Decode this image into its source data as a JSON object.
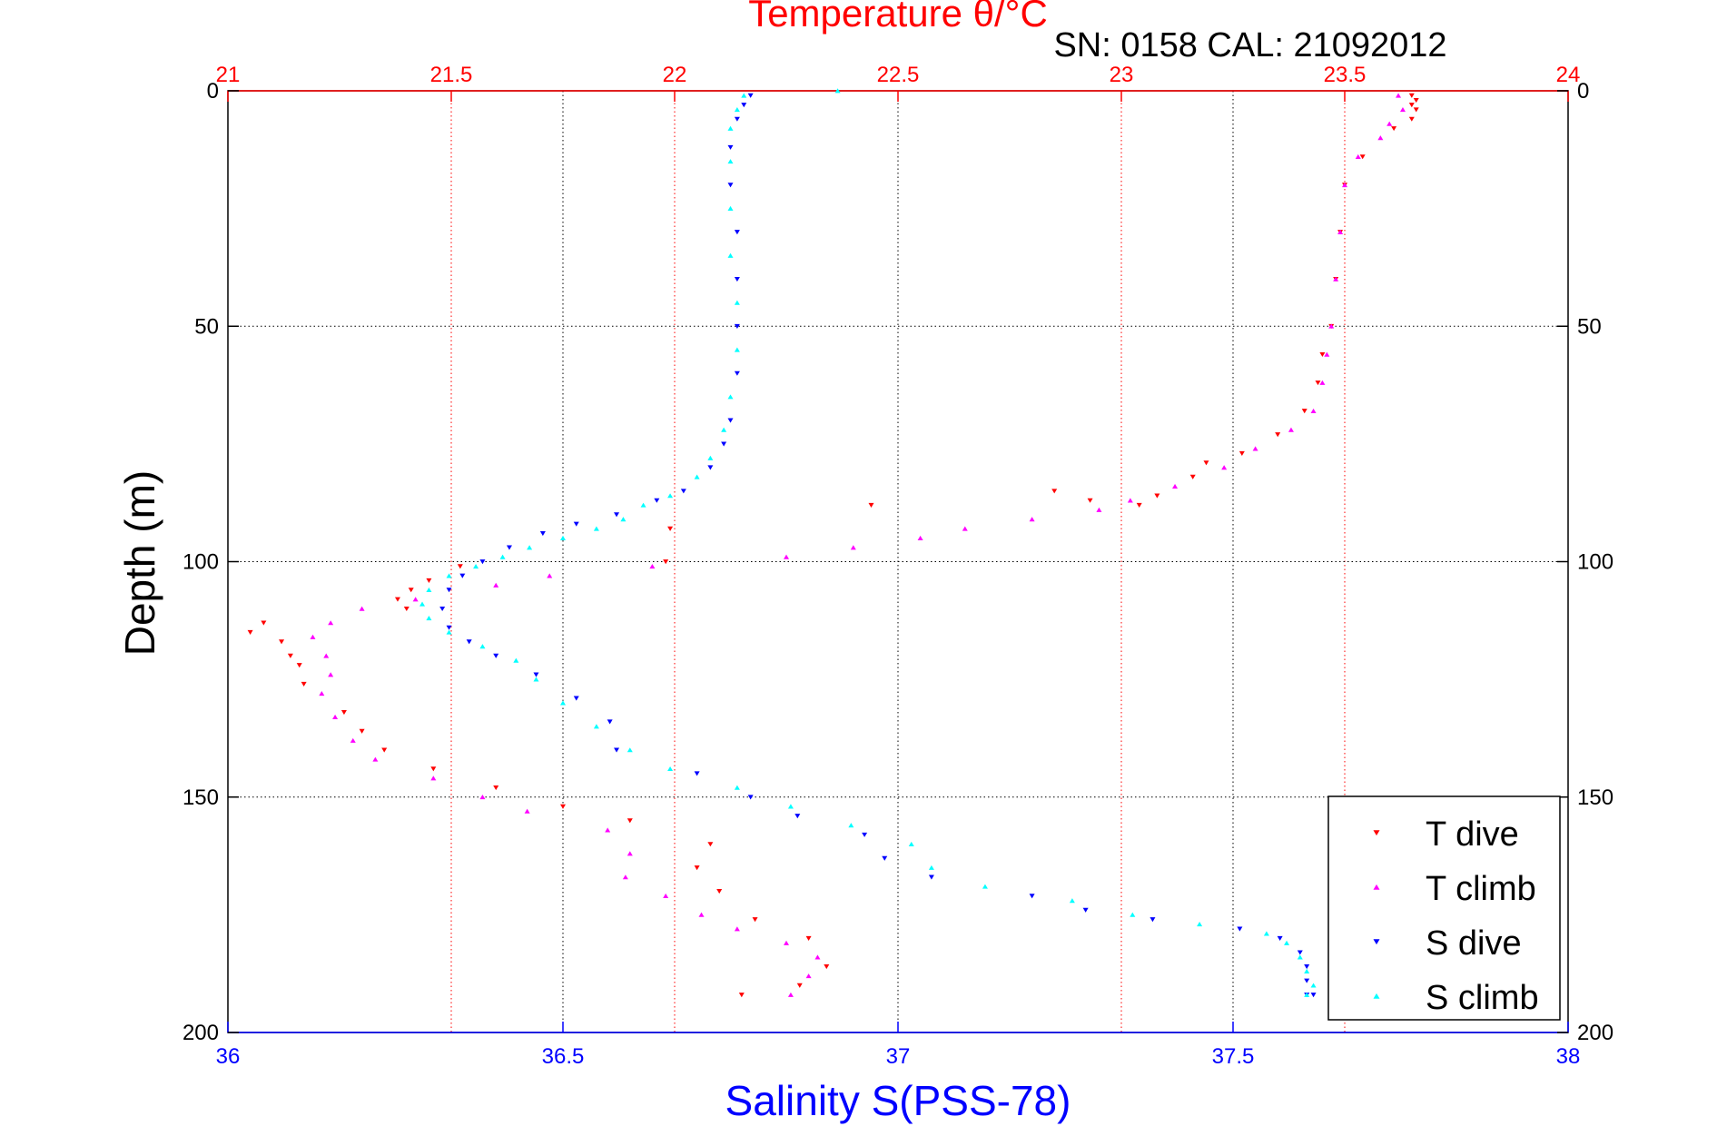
{
  "chart_data": {
    "type": "scatter",
    "title": "Temperature θ/°C",
    "subtitle": "SN: 0158  CAL: 21092012",
    "ylabel": "Depth (m)",
    "xlabel": "Salinity S(PSS-78)",
    "top_axis": {
      "label": "Temperature θ/°C",
      "lim": [
        21,
        24
      ],
      "ticks": [
        "21",
        "21.5",
        "22",
        "22.5",
        "23",
        "23.5",
        "24"
      ]
    },
    "bottom_axis": {
      "label": "Salinity S(PSS-78)",
      "lim": [
        36,
        38
      ],
      "ticks": [
        "36",
        "36.5",
        "37",
        "37.5",
        "38"
      ]
    },
    "y_axis": {
      "lim": [
        0,
        200
      ],
      "reversed": true,
      "ticks": [
        "0",
        "50",
        "100",
        "150",
        "200"
      ]
    },
    "grid": true,
    "legend_position": "bottom-right",
    "series": [
      {
        "name": "T dive",
        "axis": "top",
        "marker": "triangle-down",
        "color": "#ff0000",
        "points": [
          [
            23.65,
            1
          ],
          [
            23.66,
            2
          ],
          [
            23.65,
            3
          ],
          [
            23.66,
            4
          ],
          [
            23.65,
            6
          ],
          [
            23.61,
            8
          ],
          [
            23.54,
            14
          ],
          [
            23.5,
            20
          ],
          [
            23.49,
            30
          ],
          [
            23.48,
            40
          ],
          [
            23.47,
            50
          ],
          [
            23.45,
            56
          ],
          [
            23.44,
            62
          ],
          [
            23.41,
            68
          ],
          [
            23.35,
            73
          ],
          [
            23.27,
            77
          ],
          [
            23.19,
            79
          ],
          [
            23.16,
            82
          ],
          [
            23.08,
            86
          ],
          [
            23.04,
            88
          ],
          [
            22.93,
            87
          ],
          [
            22.85,
            85
          ],
          [
            22.44,
            88
          ],
          [
            21.99,
            93
          ],
          [
            21.98,
            100
          ],
          [
            21.52,
            101
          ],
          [
            21.45,
            104
          ],
          [
            21.41,
            106
          ],
          [
            21.38,
            108
          ],
          [
            21.4,
            110
          ],
          [
            21.08,
            113
          ],
          [
            21.05,
            115
          ],
          [
            21.12,
            117
          ],
          [
            21.14,
            120
          ],
          [
            21.16,
            122
          ],
          [
            21.17,
            126
          ],
          [
            21.26,
            132
          ],
          [
            21.3,
            136
          ],
          [
            21.35,
            140
          ],
          [
            21.46,
            144
          ],
          [
            21.6,
            148
          ],
          [
            21.75,
            152
          ],
          [
            21.9,
            155
          ],
          [
            22.08,
            160
          ],
          [
            22.05,
            165
          ],
          [
            22.1,
            170
          ],
          [
            22.18,
            176
          ],
          [
            22.3,
            180
          ],
          [
            22.34,
            186
          ],
          [
            22.28,
            190
          ],
          [
            22.15,
            192
          ]
        ]
      },
      {
        "name": "T climb",
        "axis": "top",
        "marker": "triangle-up",
        "color": "#ff00ff",
        "points": [
          [
            23.62,
            1
          ],
          [
            23.63,
            4
          ],
          [
            23.6,
            7
          ],
          [
            23.58,
            10
          ],
          [
            23.53,
            14
          ],
          [
            23.5,
            20
          ],
          [
            23.49,
            30
          ],
          [
            23.48,
            40
          ],
          [
            23.47,
            50
          ],
          [
            23.46,
            56
          ],
          [
            23.45,
            62
          ],
          [
            23.43,
            68
          ],
          [
            23.38,
            72
          ],
          [
            23.3,
            76
          ],
          [
            23.23,
            80
          ],
          [
            23.12,
            84
          ],
          [
            23.02,
            87
          ],
          [
            22.95,
            89
          ],
          [
            22.8,
            91
          ],
          [
            22.65,
            93
          ],
          [
            22.55,
            95
          ],
          [
            22.4,
            97
          ],
          [
            22.25,
            99
          ],
          [
            21.95,
            101
          ],
          [
            21.72,
            103
          ],
          [
            21.6,
            105
          ],
          [
            21.42,
            108
          ],
          [
            21.3,
            110
          ],
          [
            21.23,
            113
          ],
          [
            21.19,
            116
          ],
          [
            21.22,
            120
          ],
          [
            21.23,
            124
          ],
          [
            21.21,
            128
          ],
          [
            21.24,
            133
          ],
          [
            21.28,
            138
          ],
          [
            21.33,
            142
          ],
          [
            21.46,
            146
          ],
          [
            21.57,
            150
          ],
          [
            21.67,
            153
          ],
          [
            21.85,
            157
          ],
          [
            21.9,
            162
          ],
          [
            21.89,
            167
          ],
          [
            21.98,
            171
          ],
          [
            22.06,
            175
          ],
          [
            22.14,
            178
          ],
          [
            22.25,
            181
          ],
          [
            22.32,
            184
          ],
          [
            22.3,
            188
          ],
          [
            22.26,
            192
          ]
        ]
      },
      {
        "name": "S dive",
        "axis": "bottom",
        "marker": "triangle-down",
        "color": "#0000ff",
        "points": [
          [
            36.78,
            1
          ],
          [
            36.77,
            3
          ],
          [
            36.76,
            6
          ],
          [
            36.75,
            12
          ],
          [
            36.75,
            20
          ],
          [
            36.76,
            30
          ],
          [
            36.76,
            40
          ],
          [
            36.76,
            50
          ],
          [
            36.76,
            60
          ],
          [
            36.75,
            70
          ],
          [
            36.74,
            75
          ],
          [
            36.72,
            80
          ],
          [
            36.68,
            85
          ],
          [
            36.64,
            87
          ],
          [
            36.58,
            90
          ],
          [
            36.52,
            92
          ],
          [
            36.47,
            94
          ],
          [
            36.42,
            97
          ],
          [
            36.38,
            100
          ],
          [
            36.35,
            103
          ],
          [
            36.33,
            106
          ],
          [
            36.32,
            110
          ],
          [
            36.33,
            114
          ],
          [
            36.36,
            117
          ],
          [
            36.4,
            120
          ],
          [
            36.46,
            124
          ],
          [
            36.52,
            129
          ],
          [
            36.57,
            134
          ],
          [
            36.58,
            140
          ],
          [
            36.7,
            145
          ],
          [
            36.78,
            150
          ],
          [
            36.85,
            154
          ],
          [
            36.95,
            158
          ],
          [
            36.98,
            163
          ],
          [
            37.05,
            167
          ],
          [
            37.2,
            171
          ],
          [
            37.28,
            174
          ],
          [
            37.38,
            176
          ],
          [
            37.51,
            178
          ],
          [
            37.57,
            180
          ],
          [
            37.6,
            183
          ],
          [
            37.61,
            186
          ],
          [
            37.61,
            189
          ],
          [
            37.61,
            192
          ],
          [
            37.62,
            192
          ]
        ]
      },
      {
        "name": "S climb",
        "axis": "bottom",
        "marker": "triangle-up",
        "color": "#00ffff",
        "points": [
          [
            36.91,
            0
          ],
          [
            36.77,
            1
          ],
          [
            36.76,
            4
          ],
          [
            36.75,
            8
          ],
          [
            36.75,
            15
          ],
          [
            36.75,
            25
          ],
          [
            36.75,
            35
          ],
          [
            36.76,
            45
          ],
          [
            36.76,
            55
          ],
          [
            36.75,
            65
          ],
          [
            36.74,
            72
          ],
          [
            36.72,
            78
          ],
          [
            36.7,
            82
          ],
          [
            36.66,
            86
          ],
          [
            36.62,
            88
          ],
          [
            36.59,
            91
          ],
          [
            36.55,
            93
          ],
          [
            36.5,
            95
          ],
          [
            36.45,
            97
          ],
          [
            36.41,
            99
          ],
          [
            36.37,
            101
          ],
          [
            36.33,
            103
          ],
          [
            36.3,
            106
          ],
          [
            36.29,
            109
          ],
          [
            36.3,
            112
          ],
          [
            36.33,
            115
          ],
          [
            36.38,
            118
          ],
          [
            36.43,
            121
          ],
          [
            36.46,
            125
          ],
          [
            36.5,
            130
          ],
          [
            36.55,
            135
          ],
          [
            36.6,
            140
          ],
          [
            36.66,
            144
          ],
          [
            36.76,
            148
          ],
          [
            36.84,
            152
          ],
          [
            36.93,
            156
          ],
          [
            37.02,
            160
          ],
          [
            37.05,
            165
          ],
          [
            37.13,
            169
          ],
          [
            37.26,
            172
          ],
          [
            37.35,
            175
          ],
          [
            37.45,
            177
          ],
          [
            37.55,
            179
          ],
          [
            37.58,
            181
          ],
          [
            37.6,
            184
          ],
          [
            37.61,
            187
          ],
          [
            37.62,
            190
          ],
          [
            37.61,
            192
          ]
        ]
      }
    ]
  }
}
